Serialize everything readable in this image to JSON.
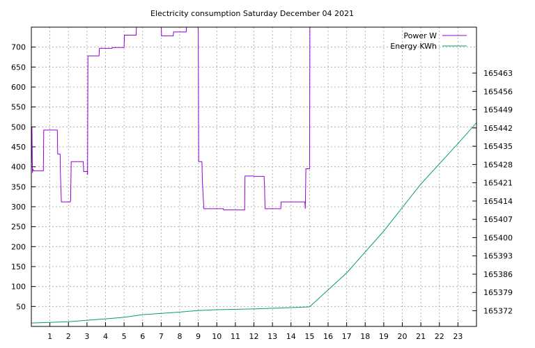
{
  "chart_data": {
    "type": "line",
    "title": "Electricity consumption Saturday December 04 2021",
    "x_range": [
      0,
      24
    ],
    "x_ticks": [
      1,
      2,
      3,
      4,
      5,
      6,
      7,
      8,
      9,
      10,
      11,
      12,
      13,
      14,
      15,
      16,
      17,
      18,
      19,
      20,
      21,
      22,
      23
    ],
    "y_left_range": [
      0,
      750
    ],
    "y_left_ticks": [
      50,
      100,
      150,
      200,
      250,
      300,
      350,
      400,
      450,
      500,
      550,
      600,
      650,
      700
    ],
    "y_right_range": [
      165366,
      165480.6
    ],
    "y_right_ticks": [
      165372,
      165379,
      165386,
      165393,
      165400,
      165407,
      165414,
      165421,
      165428,
      165435,
      165442,
      165449,
      165456,
      165463
    ],
    "grid": true,
    "legend_position": "top-right",
    "series": [
      {
        "name": "Power W",
        "axis": "left",
        "color": "#9400d3",
        "points": [
          [
            0,
            390
          ],
          [
            0.03,
            500
          ],
          [
            0.06,
            385
          ],
          [
            0.08,
            395
          ],
          [
            0.12,
            390
          ],
          [
            0.65,
            390
          ],
          [
            0.67,
            492
          ],
          [
            1.4,
            492
          ],
          [
            1.42,
            432
          ],
          [
            1.55,
            432
          ],
          [
            1.57,
            380
          ],
          [
            1.62,
            312
          ],
          [
            2.1,
            312
          ],
          [
            2.12,
            318
          ],
          [
            2.15,
            413
          ],
          [
            2.8,
            413
          ],
          [
            2.82,
            388
          ],
          [
            3.02,
            388
          ],
          [
            3.03,
            380
          ],
          [
            3.05,
            678
          ],
          [
            3.65,
            678
          ],
          [
            3.67,
            697
          ],
          [
            4.35,
            697
          ],
          [
            4.37,
            699
          ],
          [
            5.0,
            699
          ],
          [
            5.02,
            730
          ],
          [
            5.65,
            730
          ],
          [
            5.67,
            760
          ],
          [
            7.0,
            760
          ],
          [
            7.02,
            728
          ],
          [
            7.65,
            728
          ],
          [
            7.67,
            738
          ],
          [
            8.35,
            738
          ],
          [
            8.37,
            760
          ],
          [
            8.98,
            760
          ],
          [
            9.0,
            738
          ],
          [
            9.02,
            413
          ],
          [
            9.2,
            413
          ],
          [
            9.22,
            365
          ],
          [
            9.3,
            295
          ],
          [
            10.35,
            295
          ],
          [
            10.37,
            292
          ],
          [
            11.5,
            292
          ],
          [
            11.52,
            377
          ],
          [
            12.0,
            377
          ],
          [
            12.02,
            376
          ],
          [
            12.55,
            376
          ],
          [
            12.57,
            355
          ],
          [
            12.6,
            295
          ],
          [
            13.45,
            295
          ],
          [
            13.47,
            312
          ],
          [
            14.75,
            312
          ],
          [
            14.77,
            295
          ],
          [
            14.8,
            395
          ],
          [
            15.0,
            395
          ],
          [
            15.02,
            760
          ]
        ]
      },
      {
        "name": "Energy KWh",
        "axis": "right",
        "color": "#009e73",
        "points": [
          [
            0,
            165367.3
          ],
          [
            2,
            165367.8
          ],
          [
            4,
            165368.9
          ],
          [
            5,
            165369.5
          ],
          [
            6,
            165370.5
          ],
          [
            8,
            165371.5
          ],
          [
            9,
            165372.1
          ],
          [
            10,
            165372.4
          ],
          [
            12,
            165372.7
          ],
          [
            14,
            165373.2
          ],
          [
            15,
            165373.5
          ],
          [
            17,
            165386.5
          ],
          [
            19,
            165402.5
          ],
          [
            21,
            165420.5
          ],
          [
            23,
            165436
          ],
          [
            24,
            165444
          ]
        ]
      }
    ]
  }
}
